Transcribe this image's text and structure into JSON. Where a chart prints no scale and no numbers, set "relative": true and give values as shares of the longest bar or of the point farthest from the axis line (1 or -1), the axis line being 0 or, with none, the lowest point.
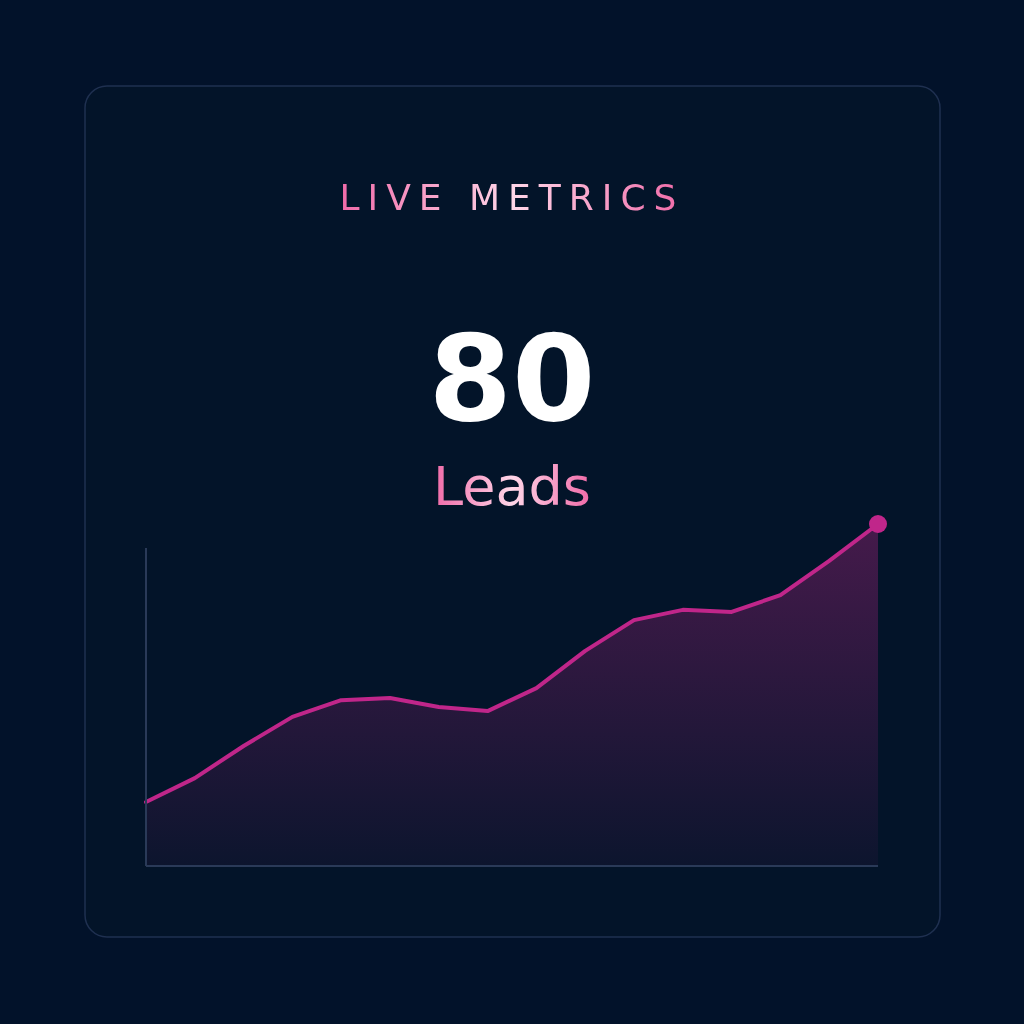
{
  "chart_data": {
    "type": "area",
    "title": "LIVE METRICS",
    "subtitle": "80",
    "annotations": [
      "Leads"
    ],
    "relative": true,
    "categories": [
      null,
      null,
      null,
      null,
      null,
      null,
      null,
      null,
      null,
      null,
      null,
      null,
      null,
      null,
      null,
      null
    ],
    "series": [
      {
        "color": "#c0268a",
        "values": [
          0.187,
          0.257,
          0.351,
          0.436,
          0.485,
          0.491,
          0.465,
          0.453,
          0.52,
          0.629,
          0.719,
          0.749,
          0.743,
          0.792,
          0.892,
          1
        ]
      }
    ]
  }
}
